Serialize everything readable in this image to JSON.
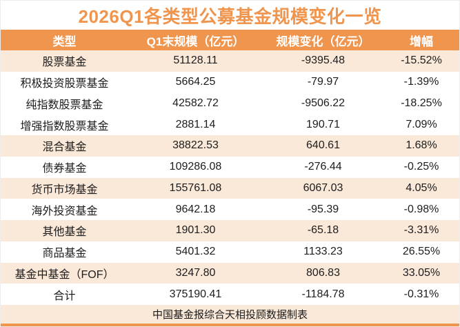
{
  "title": "2026Q1各类型公募基金规模变化一览",
  "footer_note": "中国基金报综合天相投顾数据制表",
  "colors": {
    "accent_orange": "#F0954E",
    "row_highlight_peach": "#FAE8D9",
    "body_text": "#1C1C1C",
    "header_text": "#FFFFFF"
  },
  "chart_data": {
    "type": "table",
    "title": "2026Q1各类型公募基金规模变化一览",
    "columns": [
      "类型",
      "Q1末规模（亿元）",
      "规模变化（亿元）",
      "增幅"
    ],
    "rows": [
      {
        "type": "股票基金",
        "scale": "51128.11",
        "change": "-9395.48",
        "pct": "-15.52%",
        "highlight": true
      },
      {
        "type": "积极投资股票基金",
        "scale": "5664.25",
        "change": "-79.97",
        "pct": "-1.39%",
        "highlight": false
      },
      {
        "type": "纯指数股票基金",
        "scale": "42582.72",
        "change": "-9506.22",
        "pct": "-18.25%",
        "highlight": false
      },
      {
        "type": "增强指数股票基金",
        "scale": "2881.14",
        "change": "190.71",
        "pct": "7.09%",
        "highlight": false
      },
      {
        "type": "混合基金",
        "scale": "38822.53",
        "change": "640.61",
        "pct": "1.68%",
        "highlight": true
      },
      {
        "type": "债券基金",
        "scale": "109286.08",
        "change": "-276.44",
        "pct": "-0.25%",
        "highlight": false
      },
      {
        "type": "货币市场基金",
        "scale": "155761.08",
        "change": "6067.03",
        "pct": "4.05%",
        "highlight": true
      },
      {
        "type": "海外投资基金",
        "scale": "9642.18",
        "change": "-95.39",
        "pct": "-0.98%",
        "highlight": false
      },
      {
        "type": "其他基金",
        "scale": "1901.30",
        "change": "-65.18",
        "pct": "-3.31%",
        "highlight": true
      },
      {
        "type": "商品基金",
        "scale": "5401.32",
        "change": "1133.23",
        "pct": "26.55%",
        "highlight": false
      },
      {
        "type": "基金中基金（FOF）",
        "scale": "3247.80",
        "change": "806.83",
        "pct": "33.05%",
        "highlight": true
      },
      {
        "type": "合计",
        "scale": "375190.41",
        "change": "-1184.78",
        "pct": "-0.31%",
        "highlight": false
      }
    ],
    "source_note": "中国基金报综合天相投顾数据制表",
    "layout": {
      "grid": false,
      "header_background": "#F0954E",
      "zebra_highlight": "#FAE8D9"
    }
  }
}
